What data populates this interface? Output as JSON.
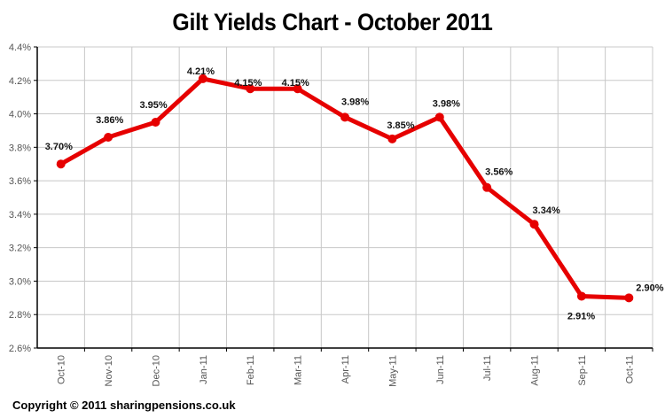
{
  "chart_data": {
    "type": "line",
    "title": "Gilt Yields Chart - October 2011",
    "xlabel": "",
    "ylabel": "",
    "categories": [
      "Oct-10",
      "Nov-10",
      "Dec-10",
      "Jan-11",
      "Feb-11",
      "Mar-11",
      "Apr-11",
      "May-11",
      "Jun-11",
      "Jul-11",
      "Aug-11",
      "Sep-11",
      "Oct-11"
    ],
    "series": [
      {
        "name": "Gilt Yield",
        "color": "#e60000",
        "values": [
          3.7,
          3.86,
          3.95,
          4.21,
          4.15,
          4.15,
          3.98,
          3.85,
          3.98,
          3.56,
          3.34,
          2.91,
          2.9
        ],
        "labels": [
          "3.70%",
          "3.86%",
          "3.95%",
          "4.21%",
          "4.15%",
          "4.15%",
          "3.98%",
          "3.85%",
          "3.98%",
          "3.56%",
          "3.34%",
          "2.91%",
          "2.90%"
        ]
      }
    ],
    "ylim": [
      2.6,
      4.4
    ],
    "yticks": [
      "2.6%",
      "2.8%",
      "3.0%",
      "3.2%",
      "3.4%",
      "3.6%",
      "3.8%",
      "4.0%",
      "4.2%",
      "4.4%"
    ],
    "ytick_values": [
      2.6,
      2.8,
      3.0,
      3.2,
      3.4,
      3.6,
      3.8,
      4.0,
      4.2,
      4.4
    ],
    "grid": true,
    "legend": "none",
    "data_labels": true
  },
  "footer": {
    "copyright": "Copyright © 2011 sharingpensions.co.uk"
  }
}
